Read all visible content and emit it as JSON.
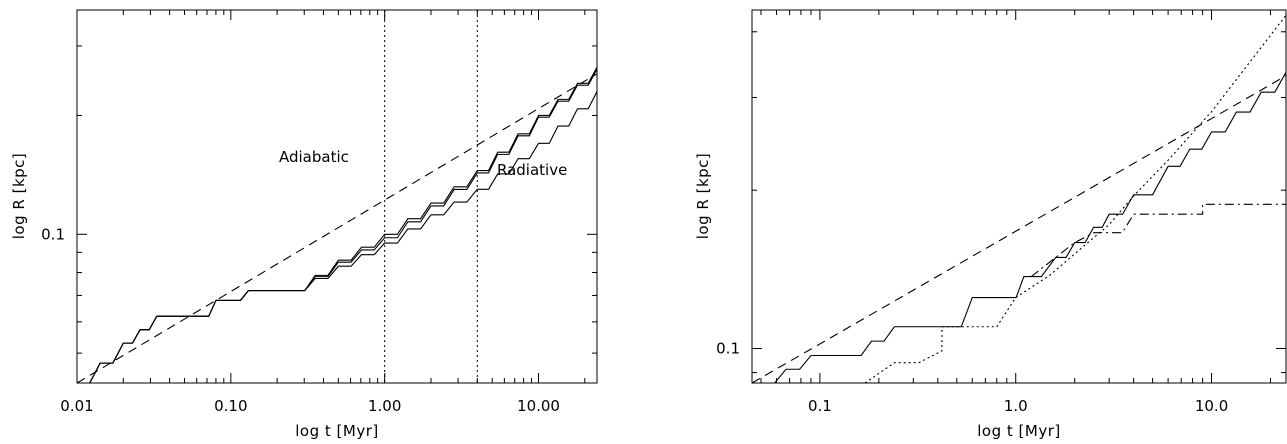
{
  "chart_data": [
    {
      "type": "line",
      "xscale": "log",
      "yscale": "log",
      "xlabel": "log t [Myr]",
      "ylabel": "log R [kpc]",
      "xlim": [
        0.01,
        24
      ],
      "ylim": [
        0.042,
        0.37
      ],
      "xtick_values": [
        0.01,
        0.1,
        1,
        10
      ],
      "xtick_labels": [
        "0.01",
        "0.10",
        "1.00",
        "10.00"
      ],
      "ytick_values": [
        0.1
      ],
      "ytick_labels": [
        "0.1"
      ],
      "annotations": [
        {
          "text": "Adiabatic",
          "x": 0.28,
          "y": 0.099
        },
        {
          "text": "Radiative",
          "x": 6.0,
          "y": 0.093
        }
      ],
      "vlines": [
        {
          "x": 1.0,
          "style": "dotted"
        },
        {
          "x": 4.0,
          "style": "dotted"
        }
      ],
      "series": [
        {
          "style": "solid",
          "steps": [
            [
              0.01,
              0.042
            ],
            [
              0.02,
              0.053
            ],
            [
              0.033,
              0.062
            ],
            [
              0.063,
              0.062
            ],
            [
              0.08,
              0.068
            ],
            [
              0.1,
              0.068
            ],
            [
              0.13,
              0.072
            ],
            [
              0.25,
              0.072
            ],
            [
              0.5,
              0.083
            ],
            [
              1.0,
              0.095
            ],
            [
              2.0,
              0.112
            ],
            [
              4.0,
              0.13
            ],
            [
              10.0,
              0.17
            ],
            [
              24.0,
              0.23
            ]
          ]
        },
        {
          "style": "solid",
          "steps": [
            [
              0.01,
              0.042
            ],
            [
              0.02,
              0.053
            ],
            [
              0.033,
              0.062
            ],
            [
              0.063,
              0.062
            ],
            [
              0.08,
              0.068
            ],
            [
              0.1,
              0.068
            ],
            [
              0.13,
              0.072
            ],
            [
              0.25,
              0.072
            ],
            [
              0.5,
              0.086
            ],
            [
              1.0,
              0.1
            ],
            [
              2.0,
              0.12
            ],
            [
              4.0,
              0.145
            ],
            [
              10.0,
              0.2
            ],
            [
              24.0,
              0.265
            ]
          ]
        },
        {
          "style": "solid",
          "steps": [
            [
              0.01,
              0.042
            ],
            [
              0.02,
              0.053
            ],
            [
              0.033,
              0.062
            ],
            [
              0.063,
              0.062
            ],
            [
              0.08,
              0.068
            ],
            [
              0.1,
              0.068
            ],
            [
              0.13,
              0.072
            ],
            [
              0.25,
              0.072
            ],
            [
              0.5,
              0.085
            ],
            [
              1.0,
              0.098
            ],
            [
              2.0,
              0.118
            ],
            [
              4.0,
              0.143
            ],
            [
              10.0,
              0.198
            ],
            [
              24.0,
              0.262
            ]
          ]
        },
        {
          "style": "dashed",
          "x": [
            0.01,
            24.0
          ],
          "y": [
            0.042,
            0.255
          ]
        }
      ]
    },
    {
      "type": "line",
      "xscale": "log",
      "yscale": "log",
      "xlabel": "log t [Myr]",
      "ylabel": "log R [kpc]",
      "xlim": [
        0.045,
        24
      ],
      "ylim": [
        0.086,
        0.44
      ],
      "xtick_values": [
        0.1,
        1,
        10
      ],
      "xtick_labels": [
        "0.1",
        "1.0",
        "10.0"
      ],
      "ytick_values": [
        0.1
      ],
      "ytick_labels": [
        "0.1"
      ],
      "series": [
        {
          "style": "solid",
          "steps": [
            [
              0.05,
              0.086
            ],
            [
              0.09,
              0.097
            ],
            [
              0.14,
              0.097
            ],
            [
              0.24,
              0.11
            ],
            [
              0.45,
              0.11
            ],
            [
              0.6,
              0.125
            ],
            [
              0.9,
              0.125
            ],
            [
              1.1,
              0.137
            ],
            [
              1.6,
              0.149
            ],
            [
              2.0,
              0.159
            ],
            [
              2.5,
              0.17
            ],
            [
              3.0,
              0.18
            ],
            [
              4.0,
              0.196
            ],
            [
              6.0,
              0.222
            ],
            [
              10.0,
              0.258
            ],
            [
              24.0,
              0.335
            ]
          ]
        },
        {
          "style": "dashed",
          "x": [
            0.045,
            24.0
          ],
          "y": [
            0.07,
            0.33
          ]
        },
        {
          "style": "dotted",
          "x": [
            0.17,
            0.24,
            0.32,
            0.42,
            0.42,
            0.8,
            1.0,
            1.5,
            2.2,
            3.0,
            4.0,
            6.0,
            10.0,
            24.0
          ],
          "y": [
            0.086,
            0.094,
            0.094,
            0.099,
            0.11,
            0.11,
            0.125,
            0.138,
            0.156,
            0.172,
            0.195,
            0.228,
            0.282,
            0.43
          ]
        },
        {
          "style": "dashdot",
          "x": [
            1.2,
            1.6,
            2.0,
            2.5,
            3.0,
            3.5,
            4.0,
            9.0,
            9.0,
            24.0
          ],
          "y": [
            0.137,
            0.149,
            0.159,
            0.166,
            0.166,
            0.166,
            0.18,
            0.18,
            0.188,
            0.188
          ]
        }
      ]
    }
  ]
}
